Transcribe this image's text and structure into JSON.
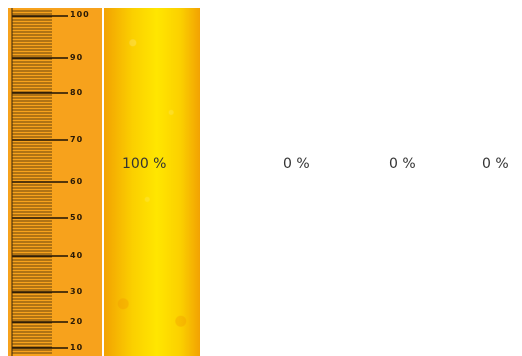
{
  "ruler": {
    "labels": [
      "100",
      "90",
      "80",
      "70",
      "60",
      "50",
      "40",
      "30",
      "20",
      "10"
    ],
    "color": "#f7a21c"
  },
  "gauges": [
    {
      "label": "100 %",
      "level": 1.0
    },
    {
      "label": "0 %",
      "level": 0.0
    },
    {
      "label": "0 %",
      "level": 0.0
    },
    {
      "label": "0 %",
      "level": 0.0
    }
  ],
  "fill_color": "#ffe600"
}
